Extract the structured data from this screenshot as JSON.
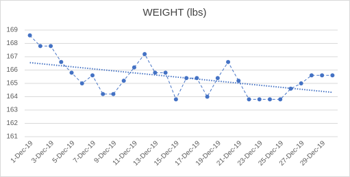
{
  "chart_data": {
    "type": "line",
    "title": "WEIGHT (lbs)",
    "categories": [
      "1-Dec-19",
      null,
      "3-Dec-19",
      null,
      "5-Dec-19",
      null,
      "7-Dec-19",
      null,
      "9-Dec-19",
      null,
      "11-Dec-19",
      null,
      "13-Dec-19",
      null,
      "15-Dec-19",
      null,
      "17-Dec-19",
      null,
      "19-Dec-19",
      null,
      "21-Dec-19",
      null,
      "23-Dec-19",
      null,
      "25-Dec-19",
      null,
      "27-Dec-19",
      null,
      "29-Dec-19",
      null
    ],
    "series": [
      {
        "name": "Weight",
        "color": "#4472c4",
        "values": [
          168.6,
          167.8,
          167.8,
          166.6,
          165.8,
          165.0,
          165.6,
          164.2,
          164.2,
          165.2,
          166.2,
          167.2,
          165.8,
          165.8,
          163.8,
          165.4,
          165.4,
          164.0,
          165.4,
          166.6,
          165.2,
          163.8,
          163.8,
          163.8,
          163.8,
          164.6,
          165.0,
          165.6,
          165.6,
          165.6
        ]
      }
    ],
    "trendline": "linear",
    "ylim": [
      161,
      169
    ],
    "yticks": [
      161,
      162,
      163,
      164,
      165,
      166,
      167,
      168,
      169
    ],
    "grid": true
  }
}
